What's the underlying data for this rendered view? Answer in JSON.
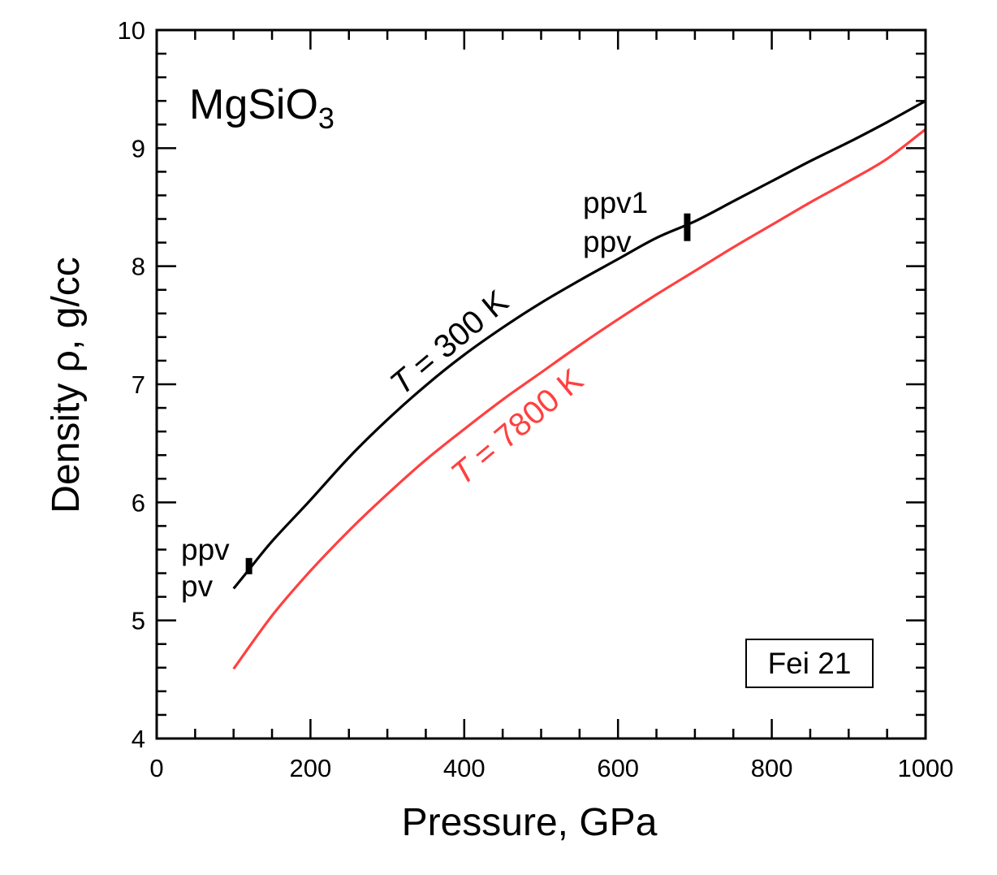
{
  "chart_data": {
    "type": "line",
    "title": "",
    "xlabel": "Pressure, GPa",
    "ylabel": "Density ρ,  g/cc",
    "xlim": [
      0,
      1000
    ],
    "ylim": [
      4,
      10
    ],
    "x_ticks": [
      "0",
      "200",
      "400",
      "600",
      "800",
      "1000"
    ],
    "y_ticks": [
      "4",
      "5",
      "6",
      "7",
      "8",
      "9",
      "10"
    ],
    "compound": {
      "base": "MgSiO",
      "subscript": "3"
    },
    "source_box": "Fei 21",
    "series": [
      {
        "name": "T = 300 K",
        "label_var": "T",
        "label_rest": " = 300 K",
        "color": "#000000",
        "x": [
          100,
          120,
          150,
          200,
          250,
          300,
          350,
          400,
          450,
          500,
          550,
          600,
          650,
          700,
          750,
          800,
          850,
          900,
          950,
          1000
        ],
        "y": [
          5.27,
          5.43,
          5.67,
          6.02,
          6.38,
          6.7,
          6.99,
          7.25,
          7.48,
          7.69,
          7.88,
          8.06,
          8.24,
          8.38,
          8.55,
          8.72,
          8.89,
          9.05,
          9.22,
          9.4
        ]
      },
      {
        "name": "T = 7800 K",
        "label_var": "T",
        "label_rest": " = 7800 K",
        "color": "#ff4040",
        "x": [
          100,
          150,
          200,
          250,
          300,
          350,
          400,
          450,
          500,
          550,
          600,
          650,
          700,
          750,
          800,
          850,
          900,
          950,
          1000
        ],
        "y": [
          4.59,
          5.04,
          5.42,
          5.76,
          6.07,
          6.36,
          6.62,
          6.87,
          7.1,
          7.33,
          7.55,
          7.76,
          7.96,
          8.16,
          8.35,
          8.54,
          8.72,
          8.91,
          9.16
        ]
      }
    ],
    "transitions": [
      {
        "x": 120,
        "y": 5.46,
        "upper": "ppv",
        "lower": "pv"
      },
      {
        "x": 690,
        "y": 8.33,
        "upper": "ppv1",
        "lower": "ppv"
      }
    ]
  }
}
